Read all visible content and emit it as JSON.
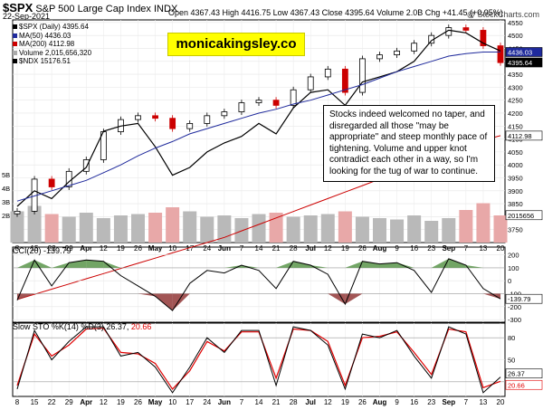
{
  "header": {
    "ticker": "$SPX",
    "name": "S&P 500 Large Cap Index",
    "exchange": "INDX",
    "date": "22-Sep-2021",
    "ohlc": "Open 4367.43  High 4416.75  Low 4367.43  Close 4395.64  Volume 2.0B  Chg +41.45 (+0.95%)",
    "credit": "@ StockCharts.com"
  },
  "watermark": "monicakingsley.co",
  "annotation": "Stocks indeed welcomed no taper, and disregarded all those \"may be appropriate\" and steep monthly pace of tightening. Volume and upper knot contradict each other in a way, so I'm looking for the tug of war to continue.",
  "legend": {
    "price": "$SPX (Daily) 4395.64",
    "ma50": "MA(50) 4436.03",
    "ma200": "MA(200) 4112.98",
    "volume": "Volume 2,015,656,320",
    "ndx": "$NDX 15176.51"
  },
  "cci": {
    "label": "CCI(20) -139.79",
    "value_label": "-139.79"
  },
  "sto": {
    "label": "Slow STO %K(14) %D(3) 26.37, 20.66",
    "prefix": "Slow STO %K(14) %D(3) ",
    "k": "26.37",
    "d": "20.66"
  },
  "price_tags": {
    "ma50": "4436.03",
    "close": "4395.64",
    "ma200": "4112.98",
    "vol": "2015656",
    "ndx": "15176.51"
  },
  "colors": {
    "up": "#000000",
    "down": "#cc0000",
    "ma50": "#1f2a9c",
    "ma200": "#cc0000",
    "cci_fill": "#4f8f3f",
    "cci_neg": "#8b2a2a",
    "sto_k": "#000000",
    "sto_d": "#e00000"
  },
  "chart_data": {
    "type": "line",
    "x": [
      "Mar 8",
      "Mar 15",
      "Mar 22",
      "Mar 29",
      "Apr",
      "Apr 12",
      "Apr 19",
      "Apr 26",
      "May",
      "May 10",
      "May 17",
      "May 24",
      "Jun",
      "Jun 7",
      "Jun 14",
      "Jun 21",
      "Jun 28",
      "Jul",
      "Jul 12",
      "Jul 19",
      "Jul 26",
      "Aug",
      "Aug 9",
      "Aug 16",
      "Aug 23",
      "Sep",
      "Sep 7",
      "Sep 13",
      "Sep 20"
    ],
    "x_tick_labels": [
      "8",
      "15",
      "22",
      "29",
      "Apr",
      "12",
      "19",
      "26",
      "May",
      "10",
      "17",
      "24",
      "Jun",
      "7",
      "14",
      "21",
      "28",
      "Jul",
      "12",
      "19",
      "26",
      "Aug",
      "9",
      "16",
      "23",
      "Sep",
      "7",
      "13",
      "20"
    ],
    "price_axis": {
      "ylim": [
        3700,
        4560
      ],
      "ticks": [
        3750,
        3800,
        3850,
        3900,
        3950,
        4000,
        4050,
        4100,
        4150,
        4200,
        4250,
        4300,
        4350,
        4400,
        4450,
        4500,
        4550
      ]
    },
    "volume_axis": {
      "ticks": [
        "2B",
        "3B",
        "4B",
        "5B"
      ]
    },
    "series": [
      {
        "name": "$SPX (Daily) 4395.64",
        "values": [
          3821,
          3945,
          3915,
          3975,
          4020,
          4128,
          4175,
          4190,
          4180,
          4140,
          4160,
          4190,
          4205,
          4240,
          4250,
          4230,
          4290,
          4340,
          4370,
          4280,
          4410,
          4425,
          4440,
          4470,
          4500,
          4530,
          4520,
          4460,
          4395
        ]
      },
      {
        "name": "MA(50) 4436.03",
        "values": [
          3860,
          3880,
          3900,
          3920,
          3940,
          3970,
          4000,
          4035,
          4065,
          4090,
          4120,
          4140,
          4160,
          4180,
          4200,
          4215,
          4235,
          4250,
          4270,
          4290,
          4310,
          4335,
          4360,
          4380,
          4400,
          4420,
          4430,
          4436,
          4436
        ]
      },
      {
        "name": "MA(200) 4112.98",
        "values": [
          3480,
          3500,
          3520,
          3540,
          3560,
          3580,
          3600,
          3620,
          3640,
          3660,
          3680,
          3700,
          3720,
          3745,
          3770,
          3795,
          3820,
          3845,
          3870,
          3895,
          3920,
          3945,
          3970,
          3995,
          4020,
          4045,
          4070,
          4095,
          4113
        ]
      },
      {
        "name": "$NDX 15176.51",
        "values": [
          3840,
          3900,
          3870,
          3935,
          3990,
          4130,
          4150,
          4160,
          4070,
          3960,
          3990,
          4050,
          4085,
          4110,
          4160,
          4120,
          4220,
          4280,
          4290,
          4230,
          4320,
          4340,
          4360,
          4400,
          4480,
          4520,
          4510,
          4470,
          4440
        ]
      }
    ],
    "volume_values": [
      2.3,
      2.7,
      2.1,
      1.9,
      2.2,
      1.8,
      2.0,
      2.1,
      2.2,
      2.6,
      2.3,
      1.9,
      2.0,
      1.8,
      2.1,
      2.2,
      1.9,
      2.0,
      2.1,
      2.3,
      1.9,
      1.8,
      1.7,
      2.0,
      1.6,
      1.8,
      2.4,
      2.9,
      2.0
    ],
    "cci": {
      "ticks": [
        -300,
        -200,
        -100,
        0,
        100,
        200
      ],
      "ylim": [
        -320,
        260
      ],
      "values": [
        -150,
        160,
        -40,
        140,
        160,
        150,
        40,
        -40,
        -120,
        -230,
        -20,
        80,
        60,
        120,
        80,
        -60,
        150,
        120,
        50,
        -180,
        150,
        130,
        140,
        80,
        -90,
        170,
        120,
        -60,
        -140
      ]
    },
    "stochastic": {
      "ticks": [
        20,
        50,
        80
      ],
      "ylim": [
        0,
        100
      ],
      "k": [
        10,
        90,
        50,
        75,
        95,
        95,
        55,
        60,
        40,
        5,
        40,
        80,
        60,
        90,
        90,
        15,
        95,
        90,
        70,
        10,
        85,
        80,
        90,
        55,
        25,
        95,
        85,
        5,
        26.37
      ],
      "d": [
        15,
        85,
        55,
        70,
        92,
        93,
        60,
        58,
        45,
        10,
        35,
        75,
        62,
        88,
        88,
        25,
        92,
        90,
        75,
        15,
        80,
        82,
        88,
        60,
        30,
        92,
        88,
        12,
        20.66
      ]
    }
  }
}
